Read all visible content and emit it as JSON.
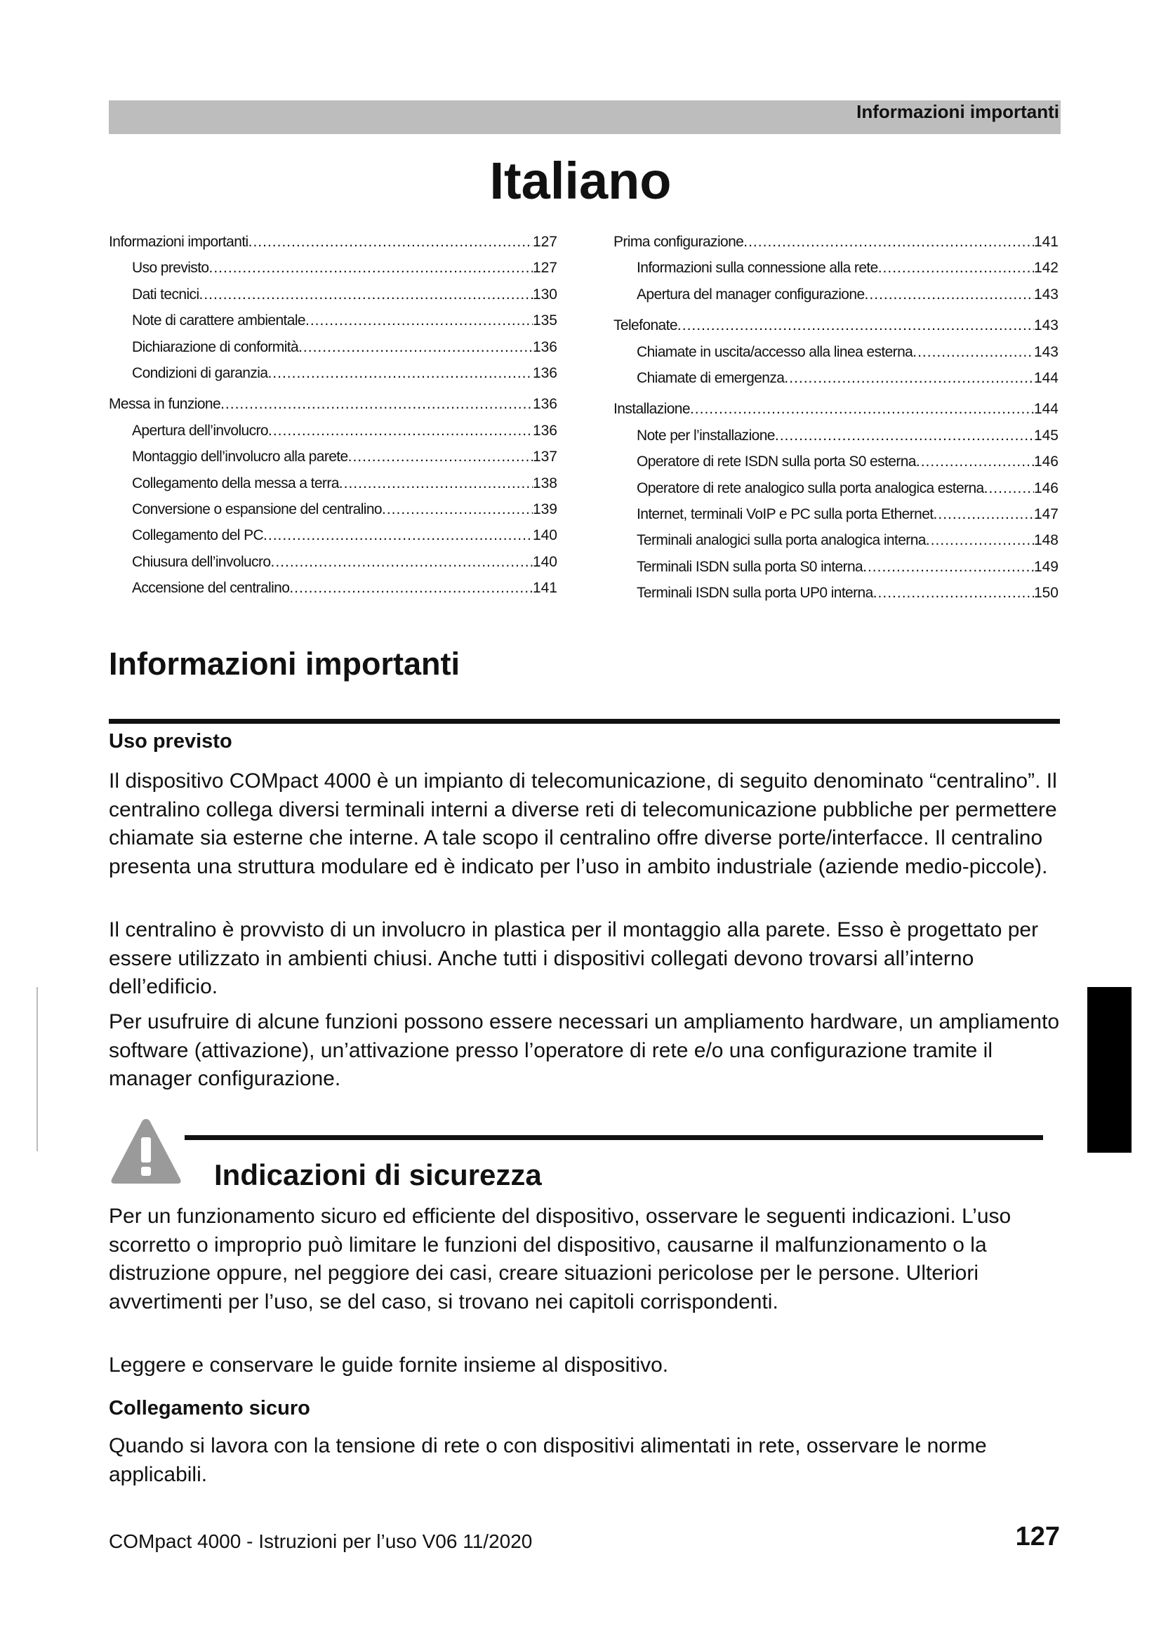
{
  "header": {
    "section": "Informazioni importanti"
  },
  "title": "Italiano",
  "toc": {
    "left": [
      {
        "label": "Informazioni importanti",
        "page": "127",
        "level": 1
      },
      {
        "label": "Uso previsto",
        "page": "127",
        "level": 2
      },
      {
        "label": "Dati tecnici",
        "page": "130",
        "level": 2
      },
      {
        "label": "Note di carattere ambientale",
        "page": "135",
        "level": 2
      },
      {
        "label": "Dichiarazione di conformità",
        "page": "136",
        "level": 2
      },
      {
        "label": "Condizioni di garanzia",
        "page": "136",
        "level": 2
      },
      {
        "label": "Messa in funzione",
        "page": "136",
        "level": 1
      },
      {
        "label": "Apertura dell’involucro",
        "page": "136",
        "level": 2
      },
      {
        "label": "Montaggio dell’involucro alla parete",
        "page": "137",
        "level": 2
      },
      {
        "label": "Collegamento della messa a terra",
        "page": "138",
        "level": 2
      },
      {
        "label": "Conversione o espansione del centralino",
        "page": "139",
        "level": 2
      },
      {
        "label": "Collegamento del PC",
        "page": "140",
        "level": 2
      },
      {
        "label": "Chiusura dell’involucro",
        "page": "140",
        "level": 2
      },
      {
        "label": "Accensione del centralino",
        "page": "141",
        "level": 2
      }
    ],
    "right": [
      {
        "label": "Prima configurazione",
        "page": "141",
        "level": 1
      },
      {
        "label": "Informazioni sulla connessione alla rete",
        "page": "142",
        "level": 2
      },
      {
        "label": "Apertura del manager configurazione",
        "page": "143",
        "level": 2
      },
      {
        "label": "Telefonate",
        "page": "143",
        "level": 1
      },
      {
        "label": "Chiamate in uscita/accesso alla linea esterna",
        "page": "143",
        "level": 2
      },
      {
        "label": "Chiamate di emergenza",
        "page": "144",
        "level": 2
      },
      {
        "label": "Installazione",
        "page": "144",
        "level": 1
      },
      {
        "label": "Note per l’installazione",
        "page": "145",
        "level": 2
      },
      {
        "label": "Operatore di rete ISDN sulla porta S0 esterna",
        "page": "146",
        "level": 2
      },
      {
        "label": "Operatore di rete analogico sulla porta analogica esterna",
        "page": "146",
        "level": 2
      },
      {
        "label": "Internet, terminali VoIP e PC sulla porta Ethernet",
        "page": "147",
        "level": 2
      },
      {
        "label": "Terminali analogici sulla porta analogica interna",
        "page": "148",
        "level": 2
      },
      {
        "label": "Terminali ISDN sulla porta S0 interna",
        "page": "149",
        "level": 2
      },
      {
        "label": "Terminali ISDN sulla porta UP0 interna",
        "page": "150",
        "level": 2
      }
    ]
  },
  "section": {
    "heading": "Informazioni importanti",
    "uso_previsto": {
      "heading": "Uso previsto",
      "paragraphs": [
        "Il dispositivo COMpact 4000 è un impianto di telecomunicazione, di seguito denominato “centralino”. Il centralino collega diversi terminali interni a diverse reti di telecomunicazione pubbliche per permettere chiamate sia esterne che interne. A tale scopo il centralino offre diverse porte/interfacce. Il centralino presenta una struttura modulare ed è indicato per l’uso in ambito industriale (aziende medio-piccole).",
        "Il centralino è provvisto di un involucro in plastica per il montaggio alla parete. Esso è progettato per essere utilizzato in ambienti chiusi. Anche tutti i dispositivi collegati devono trovarsi all’interno dell’edificio.",
        "Per usufruire di alcune funzioni possono essere necessari un ampliamento hardware, un ampliamento software (attivazione), un’attivazione presso l’operatore di rete e/o una configurazione tramite il manager configurazione."
      ]
    },
    "sicurezza": {
      "heading": "Indicazioni di sicurezza",
      "icon": "warning-triangle-icon",
      "paragraphs": [
        "Per un funzionamento sicuro ed efficiente del dispositivo, osservare le seguenti indicazioni. L’uso scorretto o improprio può limitare le funzioni del dispositivo, causarne il malfunzionamento o la distruzione oppure, nel peggiore dei casi, creare situazioni pericolose per le persone. Ulteriori avvertimenti per l’uso, se del caso, si trovano nei capitoli corrispondenti.",
        "Leggere e conservare le guide fornite insieme al dispositivo."
      ],
      "collegamento": {
        "heading": "Collegamento sicuro",
        "text": "Quando si lavora con la tensione di rete o con dispositivi alimentati in rete, osservare le norme applicabili."
      }
    }
  },
  "footer": {
    "text": "COMpact 4000 - Istruzioni per l’uso V06 11/2020",
    "page_number": "127"
  }
}
